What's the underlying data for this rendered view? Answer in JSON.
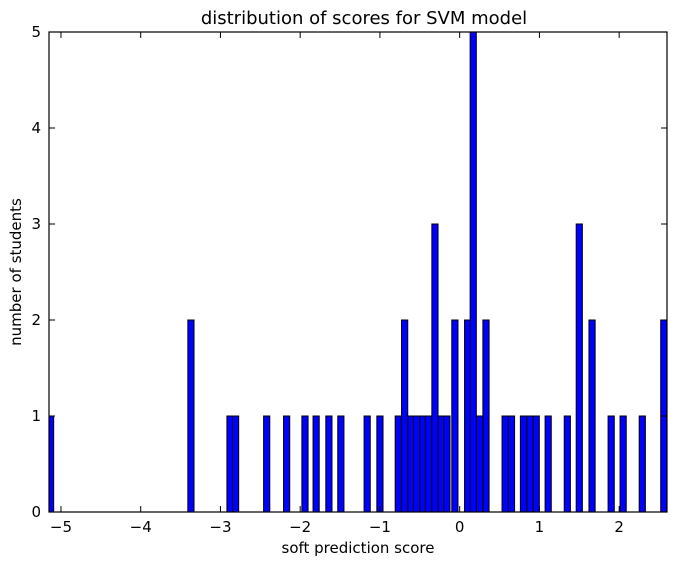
{
  "chart_data": {
    "type": "bar",
    "title": "distribution of scores for SVM model",
    "xlabel": "soft prediction score",
    "ylabel": "number of students",
    "xlim": [
      -5.15,
      2.6
    ],
    "ylim": [
      0,
      5
    ],
    "xticks": [
      -5,
      -4,
      -3,
      -2,
      -1,
      0,
      1,
      2
    ],
    "xtick_labels": [
      "−5",
      "−4",
      "−3",
      "−2",
      "−1",
      "0",
      "1",
      "2"
    ],
    "yticks": [
      0,
      1,
      2,
      3,
      4,
      5
    ],
    "ytick_labels": [
      "0",
      "1",
      "2",
      "3",
      "4",
      "5"
    ],
    "bar_color": "#0000ff",
    "edge_color": "#000000",
    "bins": [
      {
        "x": -5.13,
        "count": 1
      },
      {
        "x": -3.37,
        "count": 2
      },
      {
        "x": -2.88,
        "count": 1
      },
      {
        "x": -2.81,
        "count": 1
      },
      {
        "x": -2.42,
        "count": 1
      },
      {
        "x": -2.17,
        "count": 1
      },
      {
        "x": -1.94,
        "count": 1
      },
      {
        "x": -1.8,
        "count": 1
      },
      {
        "x": -1.64,
        "count": 1
      },
      {
        "x": -1.49,
        "count": 1
      },
      {
        "x": -1.16,
        "count": 1
      },
      {
        "x": -1.0,
        "count": 1
      },
      {
        "x": -0.77,
        "count": 1
      },
      {
        "x": -0.69,
        "count": 2
      },
      {
        "x": -0.61,
        "count": 1
      },
      {
        "x": -0.54,
        "count": 1
      },
      {
        "x": -0.46,
        "count": 1
      },
      {
        "x": -0.39,
        "count": 1
      },
      {
        "x": -0.31,
        "count": 3
      },
      {
        "x": -0.23,
        "count": 1
      },
      {
        "x": -0.16,
        "count": 1
      },
      {
        "x": -0.06,
        "count": 2
      },
      {
        "x": 0.1,
        "count": 2
      },
      {
        "x": 0.17,
        "count": 5
      },
      {
        "x": 0.25,
        "count": 1
      },
      {
        "x": 0.33,
        "count": 2
      },
      {
        "x": 0.57,
        "count": 1
      },
      {
        "x": 0.65,
        "count": 1
      },
      {
        "x": 0.8,
        "count": 1
      },
      {
        "x": 0.88,
        "count": 1
      },
      {
        "x": 0.96,
        "count": 1
      },
      {
        "x": 1.11,
        "count": 1
      },
      {
        "x": 1.35,
        "count": 1
      },
      {
        "x": 1.5,
        "count": 3
      },
      {
        "x": 1.66,
        "count": 2
      },
      {
        "x": 1.9,
        "count": 1
      },
      {
        "x": 2.05,
        "count": 1
      },
      {
        "x": 2.29,
        "count": 1
      },
      {
        "x": 2.56,
        "count": 2
      }
    ]
  }
}
